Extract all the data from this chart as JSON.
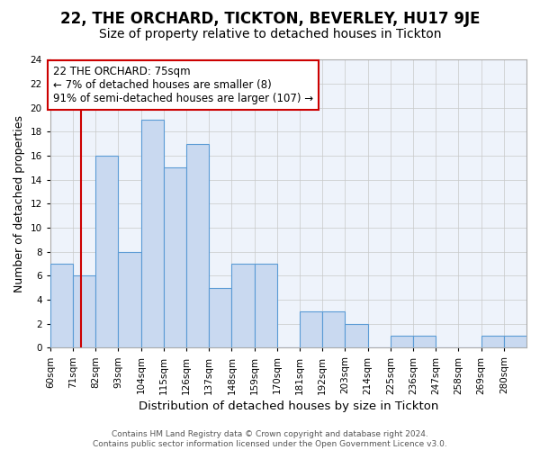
{
  "title1": "22, THE ORCHARD, TICKTON, BEVERLEY, HU17 9JE",
  "title2": "Size of property relative to detached houses in Tickton",
  "xlabel": "Distribution of detached houses by size in Tickton",
  "ylabel": "Number of detached properties",
  "bar_labels": [
    "60sqm",
    "71sqm",
    "82sqm",
    "93sqm",
    "104sqm",
    "115sqm",
    "126sqm",
    "137sqm",
    "148sqm",
    "159sqm",
    "170sqm",
    "181sqm",
    "192sqm",
    "203sqm",
    "214sqm",
    "225sqm",
    "236sqm",
    "247sqm",
    "258sqm",
    "269sqm",
    "280sqm"
  ],
  "bar_values": [
    7,
    6,
    16,
    8,
    19,
    15,
    17,
    5,
    7,
    7,
    0,
    3,
    3,
    2,
    0,
    1,
    1,
    0,
    0,
    1,
    1
  ],
  "bar_edges": [
    60,
    71,
    82,
    93,
    104,
    115,
    126,
    137,
    148,
    159,
    170,
    181,
    192,
    203,
    214,
    225,
    236,
    247,
    258,
    269,
    280,
    291
  ],
  "bar_color": "#c9d9f0",
  "bar_edge_color": "#5b9bd5",
  "grid_color": "#c8c8c8",
  "bg_color": "#eef3fb",
  "annotation_box_color": "#ffffff",
  "annotation_box_edge": "#cc0000",
  "vline_color": "#cc0000",
  "vline_x": 75,
  "annotation_text_line1": "22 THE ORCHARD: 75sqm",
  "annotation_text_line2": "← 7% of detached houses are smaller (8)",
  "annotation_text_line3": "91% of semi-detached houses are larger (107) →",
  "footer1": "Contains HM Land Registry data © Crown copyright and database right 2024.",
  "footer2": "Contains public sector information licensed under the Open Government Licence v3.0.",
  "ylim": [
    0,
    24
  ],
  "yticks": [
    0,
    2,
    4,
    6,
    8,
    10,
    12,
    14,
    16,
    18,
    20,
    22,
    24
  ],
  "title1_fontsize": 12,
  "title2_fontsize": 10,
  "xlabel_fontsize": 9.5,
  "ylabel_fontsize": 9,
  "tick_fontsize": 7.5,
  "annotation_fontsize": 8.5,
  "footer_fontsize": 6.5
}
